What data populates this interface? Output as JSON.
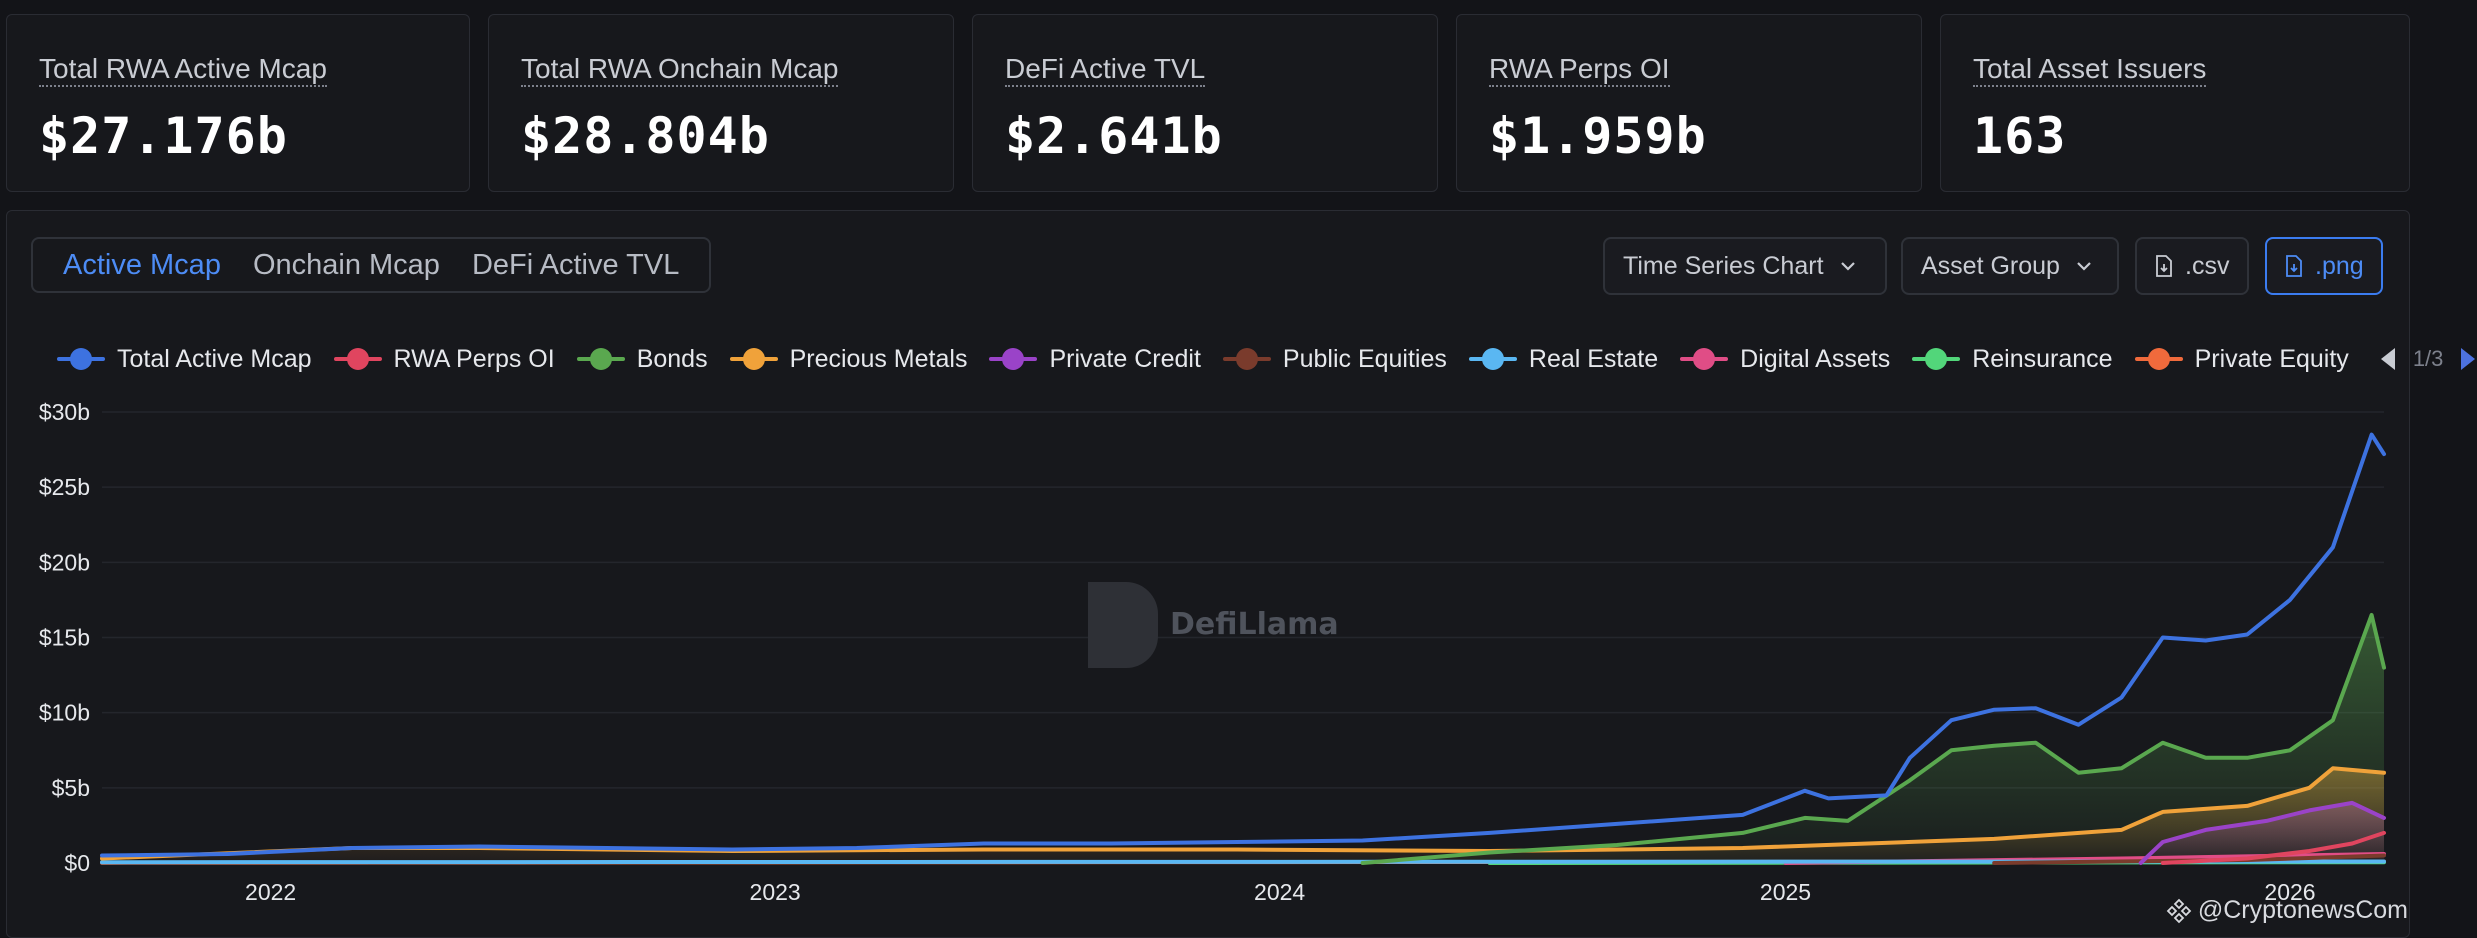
{
  "stats": [
    {
      "label": "Total RWA Active Mcap",
      "value": "$27.176b"
    },
    {
      "label": "Total RWA Onchain Mcap",
      "value": "$28.804b"
    },
    {
      "label": "DeFi Active TVL",
      "value": "$2.641b"
    },
    {
      "label": "RWA Perps OI",
      "value": "$1.959b"
    },
    {
      "label": "Total Asset Issuers",
      "value": "163"
    }
  ],
  "tabs": [
    {
      "label": "Active Mcap",
      "active": true
    },
    {
      "label": "Onchain Mcap",
      "active": false
    },
    {
      "label": "DeFi Active TVL",
      "active": false
    }
  ],
  "controls": {
    "chart_type": "Time Series Chart",
    "grouping": "Asset Group",
    "csv": ".csv",
    "png": ".png"
  },
  "legend": {
    "page": "1/3"
  },
  "watermark": "DefiLlama",
  "credit": "@CryptonewsCom",
  "colors": {
    "accent": "#4d8cf5",
    "background": "#131418"
  },
  "chart_data": {
    "type": "line",
    "title": "",
    "xlabel": "",
    "ylabel": "",
    "x_ticks": [
      "2022",
      "2023",
      "2024",
      "2025",
      "2026"
    ],
    "y_ticks": [
      "$0",
      "$5b",
      "$10b",
      "$15b",
      "$20b",
      "$25b",
      "$30b"
    ],
    "ylim": [
      0,
      30
    ],
    "y_unit": "billions USD",
    "grid": true,
    "legend_position": "top",
    "series": [
      {
        "name": "Total Active Mcap",
        "color": "#3d72e0",
        "points": [
          [
            "2021-09-01",
            0.5
          ],
          [
            "2021-12-01",
            0.6
          ],
          [
            "2022-03-01",
            1.0
          ],
          [
            "2022-06-01",
            1.1
          ],
          [
            "2022-09-01",
            1.0
          ],
          [
            "2022-12-01",
            0.9
          ],
          [
            "2023-03-01",
            1.0
          ],
          [
            "2023-06-01",
            1.3
          ],
          [
            "2023-09-01",
            1.3
          ],
          [
            "2023-12-01",
            1.4
          ],
          [
            "2024-03-01",
            1.5
          ],
          [
            "2024-06-01",
            2.0
          ],
          [
            "2024-09-01",
            2.6
          ],
          [
            "2024-12-01",
            3.2
          ],
          [
            "2025-01-15",
            4.8
          ],
          [
            "2025-02-01",
            4.3
          ],
          [
            "2025-03-15",
            4.5
          ],
          [
            "2025-04-01",
            7.0
          ],
          [
            "2025-05-01",
            9.5
          ],
          [
            "2025-06-01",
            10.2
          ],
          [
            "2025-07-01",
            10.3
          ],
          [
            "2025-08-01",
            9.2
          ],
          [
            "2025-09-01",
            11.0
          ],
          [
            "2025-10-01",
            15.0
          ],
          [
            "2025-11-01",
            14.8
          ],
          [
            "2025-12-01",
            15.2
          ],
          [
            "2026-01-01",
            17.5
          ],
          [
            "2026-02-01",
            21.0
          ],
          [
            "2026-03-01",
            28.5
          ],
          [
            "2026-03-10",
            27.2
          ]
        ]
      },
      {
        "name": "RWA Perps OI",
        "color": "#e0455f",
        "points": [
          [
            "2025-10-01",
            0.0
          ],
          [
            "2025-12-01",
            0.3
          ],
          [
            "2026-01-15",
            0.8
          ],
          [
            "2026-02-15",
            1.3
          ],
          [
            "2026-03-10",
            2.0
          ]
        ]
      },
      {
        "name": "Bonds",
        "color": "#5aa84f",
        "area": true,
        "points": [
          [
            "2024-03-01",
            0.0
          ],
          [
            "2024-06-01",
            0.7
          ],
          [
            "2024-09-01",
            1.2
          ],
          [
            "2024-12-01",
            2.0
          ],
          [
            "2025-01-15",
            3.0
          ],
          [
            "2025-02-15",
            2.8
          ],
          [
            "2025-04-01",
            5.5
          ],
          [
            "2025-05-01",
            7.5
          ],
          [
            "2025-06-01",
            7.8
          ],
          [
            "2025-07-01",
            8.0
          ],
          [
            "2025-08-01",
            6.0
          ],
          [
            "2025-09-01",
            6.3
          ],
          [
            "2025-10-01",
            8.0
          ],
          [
            "2025-11-01",
            7.0
          ],
          [
            "2025-12-01",
            7.0
          ],
          [
            "2026-01-01",
            7.5
          ],
          [
            "2026-02-01",
            9.5
          ],
          [
            "2026-03-01",
            16.5
          ],
          [
            "2026-03-10",
            13.0
          ]
        ]
      },
      {
        "name": "Precious Metals",
        "color": "#f0a23a",
        "area": true,
        "points": [
          [
            "2021-09-01",
            0.3
          ],
          [
            "2022-03-01",
            1.0
          ],
          [
            "2022-06-01",
            1.0
          ],
          [
            "2022-12-01",
            0.8
          ],
          [
            "2023-06-01",
            0.9
          ],
          [
            "2023-12-01",
            0.9
          ],
          [
            "2024-06-01",
            0.8
          ],
          [
            "2024-12-01",
            1.0
          ],
          [
            "2025-06-01",
            1.6
          ],
          [
            "2025-09-01",
            2.2
          ],
          [
            "2025-10-01",
            3.4
          ],
          [
            "2025-12-01",
            3.8
          ],
          [
            "2026-01-15",
            5.0
          ],
          [
            "2026-02-01",
            6.3
          ],
          [
            "2026-03-10",
            6.0
          ]
        ]
      },
      {
        "name": "Private Credit",
        "color": "#9a43c8",
        "area": true,
        "points": [
          [
            "2025-09-15",
            0.0
          ],
          [
            "2025-10-01",
            1.4
          ],
          [
            "2025-11-01",
            2.2
          ],
          [
            "2025-12-15",
            2.8
          ],
          [
            "2026-01-15",
            3.5
          ],
          [
            "2026-02-15",
            4.0
          ],
          [
            "2026-03-10",
            3.0
          ]
        ]
      },
      {
        "name": "Public Equities",
        "color": "#7a3b2c",
        "points": [
          [
            "2025-06-01",
            0.0
          ],
          [
            "2025-12-01",
            0.2
          ],
          [
            "2026-03-10",
            0.5
          ]
        ]
      },
      {
        "name": "Real Estate",
        "color": "#5ab7f2",
        "points": [
          [
            "2021-09-01",
            0.05
          ],
          [
            "2026-03-10",
            0.1
          ]
        ]
      },
      {
        "name": "Digital Assets",
        "color": "#e04d86",
        "points": [
          [
            "2025-01-01",
            0.0
          ],
          [
            "2025-09-01",
            0.3
          ],
          [
            "2026-03-10",
            0.6
          ]
        ]
      },
      {
        "name": "Reinsurance",
        "color": "#52d67a",
        "points": [
          [
            "2024-06-01",
            0.0
          ],
          [
            "2026-03-10",
            0.05
          ]
        ]
      },
      {
        "name": "Private Equity",
        "color": "#f06a3c",
        "points": [
          [
            "2021-09-01",
            0.02
          ],
          [
            "2026-03-10",
            0.1
          ]
        ]
      }
    ]
  }
}
